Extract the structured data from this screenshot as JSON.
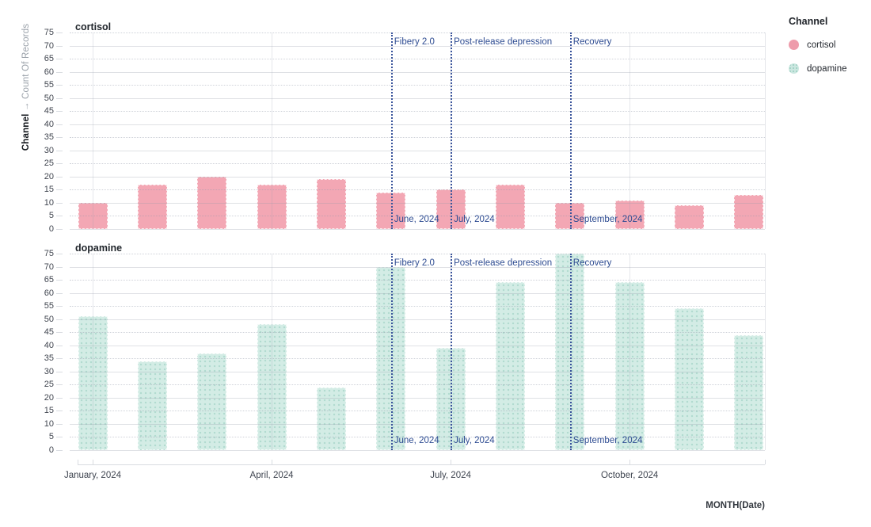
{
  "chart_data": {
    "type": "bar",
    "faceted_by": "Channel",
    "categories": [
      "January, 2024",
      "February, 2024",
      "March, 2024",
      "April, 2024",
      "May, 2024",
      "June, 2024",
      "July, 2024",
      "August, 2024",
      "September, 2024",
      "October, 2024",
      "November, 2024",
      "December, 2024"
    ],
    "series": [
      {
        "name": "cortisol",
        "color": "#f3a7b4",
        "textured": false,
        "values": [
          10,
          17,
          20,
          17,
          19,
          14,
          15,
          17,
          10,
          11,
          9,
          13
        ]
      },
      {
        "name": "dopamine",
        "color": "#d3ece5",
        "textured": true,
        "values": [
          51,
          34,
          37,
          48,
          24,
          70,
          39,
          64,
          75,
          64,
          54,
          44
        ]
      }
    ],
    "xlabel": "MONTH(Date)",
    "ylabel_bold": "Channel",
    "ylabel_rest": " → Count Of Records",
    "ylim": [
      0,
      75
    ],
    "ytick_step": 5,
    "x_axis_ticks": [
      {
        "month_index": 0,
        "label": "January, 2024"
      },
      {
        "month_index": 3,
        "label": "April, 2024"
      },
      {
        "month_index": 6,
        "label": "July, 2024"
      },
      {
        "month_index": 9,
        "label": "October, 2024"
      }
    ],
    "grid": true,
    "legend_position": "right",
    "annotations": [
      {
        "label": "Fibery 2.0",
        "date_label": "June, 2024",
        "month_index": 5
      },
      {
        "label": "Post-release depression",
        "date_label": "July, 2024",
        "month_index": 6
      },
      {
        "label": "Recovery",
        "date_label": "September, 2024",
        "month_index": 8
      }
    ],
    "rule_color": "#3a549b"
  },
  "legend": {
    "title": "Channel",
    "items": [
      {
        "label": "cortisol",
        "textured": false
      },
      {
        "label": "dopamine",
        "textured": true
      }
    ]
  }
}
